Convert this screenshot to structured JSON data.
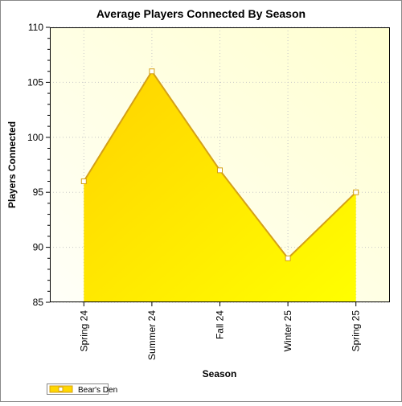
{
  "chart_data": {
    "type": "area",
    "title": "Average Players Connected By Season",
    "xlabel": "Season",
    "ylabel": "Players Connected",
    "categories": [
      "Spring 24",
      "Summer 24",
      "Fall 24",
      "Winter 25",
      "Spring 25"
    ],
    "series": [
      {
        "name": "Bear's Den",
        "values": [
          96,
          106,
          97,
          89,
          95
        ]
      }
    ],
    "ylim": [
      85,
      110
    ],
    "yticks": [
      85,
      90,
      95,
      100,
      105,
      110
    ],
    "grid": true,
    "legend_position": "bottom-left",
    "colors": {
      "area_top": "#ffd700",
      "area_bottom": "#ffff00",
      "line": "#d4a017",
      "plot_bg_light": "#fffff0",
      "plot_bg_dark": "#ffffd0"
    }
  }
}
